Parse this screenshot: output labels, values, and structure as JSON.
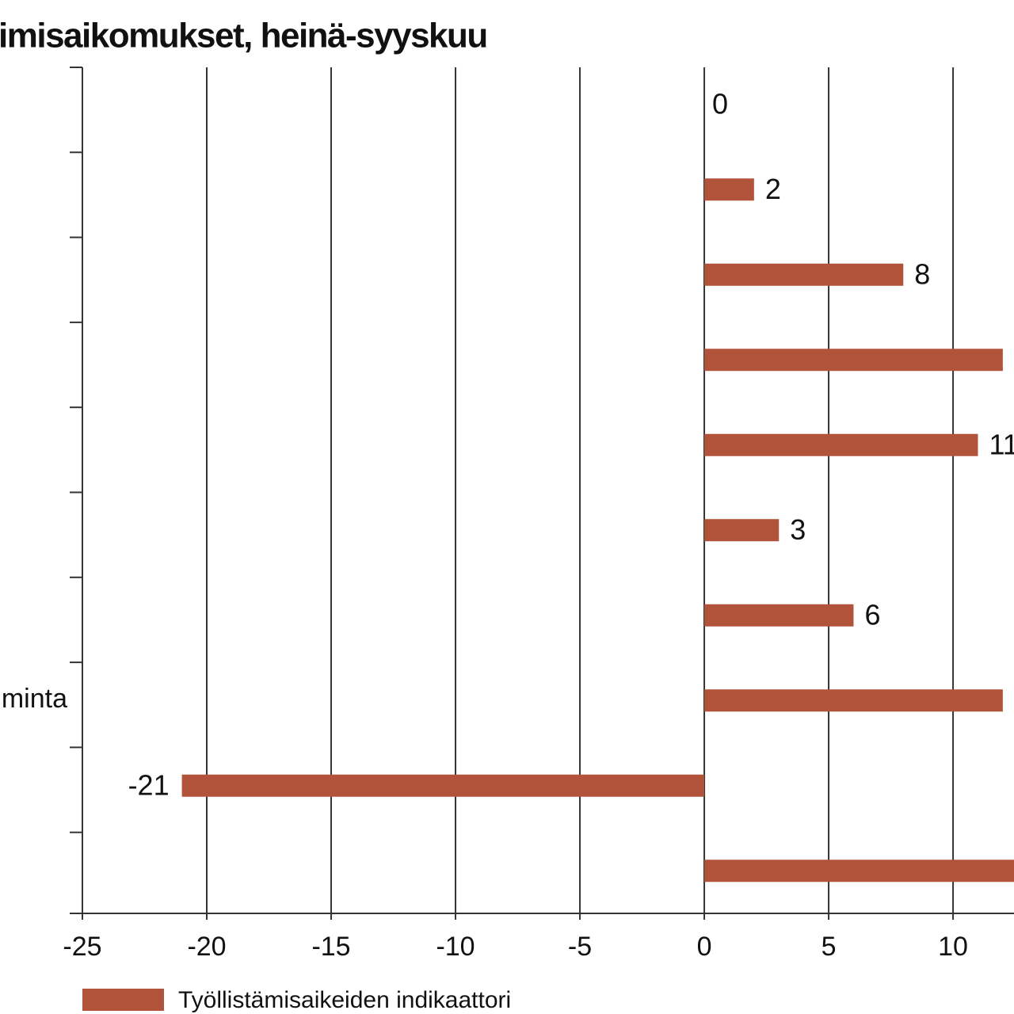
{
  "chart_data": {
    "type": "hbar",
    "title": "imisaikomukset, heinä-syyskuu",
    "categories": [
      null,
      null,
      null,
      null,
      null,
      null,
      null,
      "minta",
      null,
      null
    ],
    "series": [
      {
        "name": "Työllistämisaikeiden indikaattori",
        "color": "#b0533a",
        "values": [
          0,
          2,
          8,
          12,
          11,
          3,
          6,
          12,
          -21,
          14
        ],
        "value_labels": [
          "0",
          "2",
          "8",
          null,
          "11",
          "3",
          "6",
          null,
          "-21",
          null
        ]
      }
    ],
    "xlim": [
      -25,
      12.45
    ],
    "xticks": [
      -25,
      -20,
      -15,
      -10,
      -5,
      0,
      5,
      10
    ],
    "grid": true
  }
}
